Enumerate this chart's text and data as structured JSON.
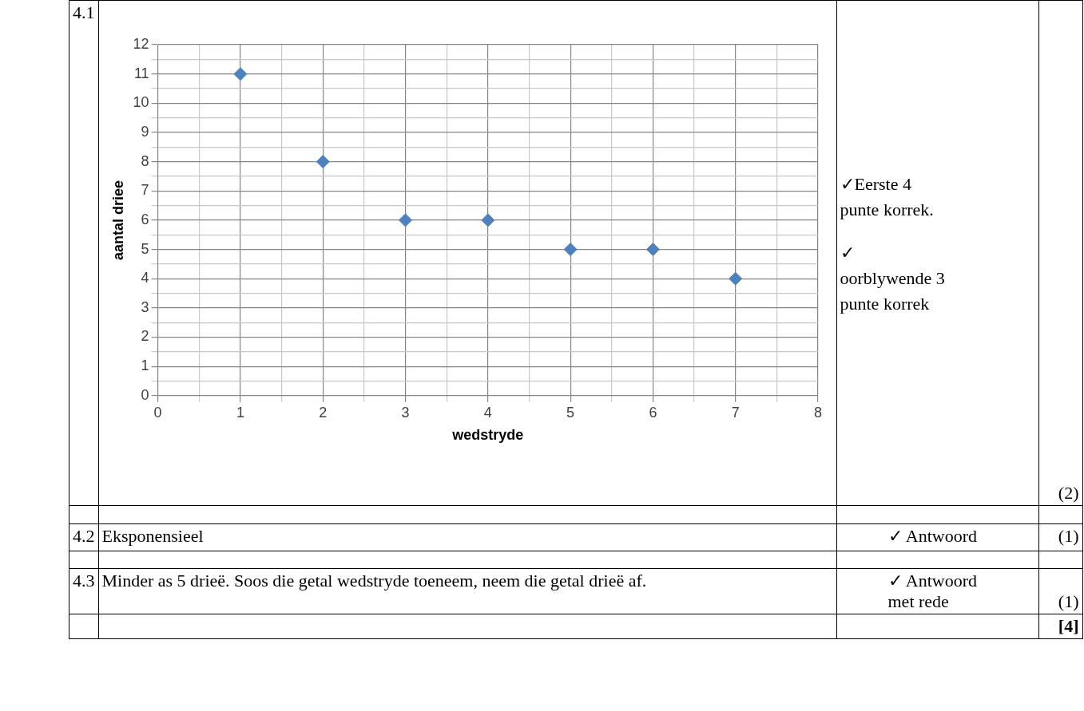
{
  "chart_data": {
    "type": "scatter",
    "xlabel": "wedstryde",
    "ylabel": "aantal driee",
    "x": [
      1,
      2,
      3,
      4,
      5,
      6,
      7
    ],
    "series": [
      {
        "color": "#4f81bd",
        "values": [
          11,
          8,
          6,
          6,
          5,
          5,
          4
        ]
      }
    ],
    "xlim": [
      0,
      8
    ],
    "xticks": [
      0,
      {
        "value": 0.5,
        "label": null
      },
      1,
      {
        "value": 1.5,
        "label": null
      },
      2,
      {
        "value": 2.5,
        "label": null
      },
      3,
      {
        "value": 3.5,
        "label": null
      },
      4,
      {
        "value": 4.5,
        "label": null
      },
      5,
      {
        "value": 5.5,
        "label": null
      },
      6,
      {
        "value": 6.5,
        "label": null
      },
      7,
      {
        "value": 7.5,
        "label": null
      },
      8
    ],
    "ylim": [
      0,
      12
    ],
    "yticks": [
      0,
      {
        "value": 0.5,
        "label": null
      },
      1,
      {
        "value": 1.5,
        "label": null
      },
      2,
      {
        "value": 2.5,
        "label": null
      },
      3,
      {
        "value": 3.5,
        "label": null
      },
      4,
      {
        "value": 4.5,
        "label": null
      },
      5,
      {
        "value": 5.5,
        "label": null
      },
      6,
      {
        "value": 6.5,
        "label": null
      },
      7,
      {
        "value": 7.5,
        "label": null
      },
      8,
      {
        "value": 8.5,
        "label": null
      },
      9,
      {
        "value": 9.5,
        "label": null
      },
      10,
      {
        "value": 10.5,
        "label": null
      },
      11,
      {
        "value": 11.5,
        "label": null
      },
      12
    ],
    "grid": true,
    "legend": false,
    "marker": "diamond",
    "annotations": [
      "4.1",
      "✓Eerste 4 punte korrek.",
      "✓ oorblywende 3 punte korrek",
      "(2)",
      "4.2",
      "Eksponensieel",
      "✓ Antwoord",
      "(1)",
      "4.3",
      "Minder as 5 drieë. Soos die getal wedstryde toeneem, neem die getal drieë af.",
      "✓ Antwoord met rede",
      "(1)",
      "[4]"
    ]
  }
}
